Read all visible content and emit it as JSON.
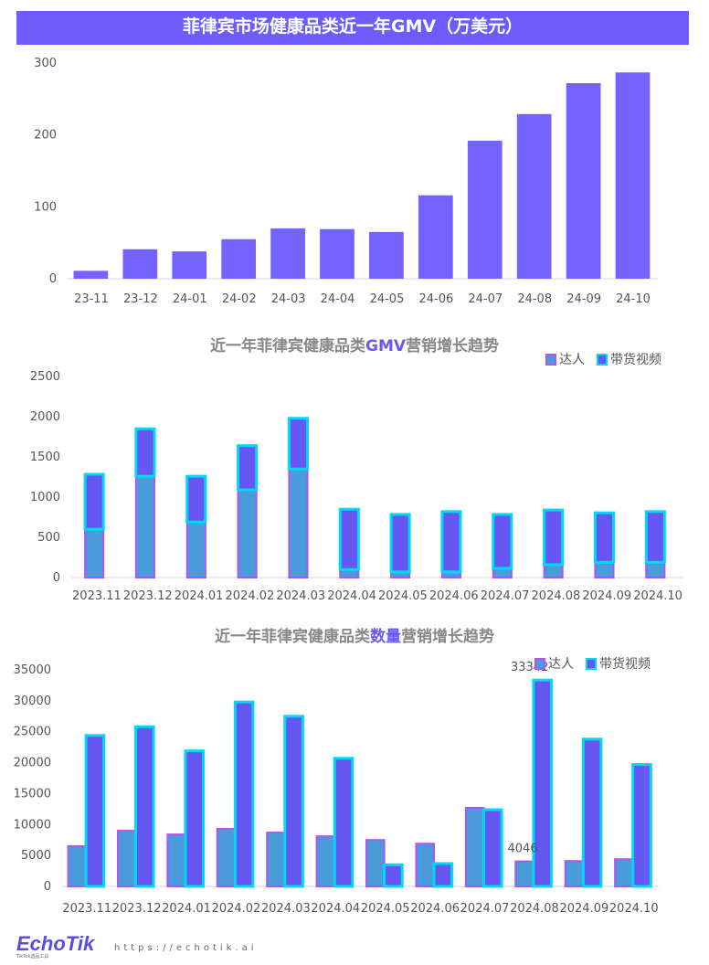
{
  "colors": {
    "banner": "#6e5bfb",
    "bar": "#7563ff",
    "darenFill": "#4a9bd9",
    "darenBorder": "#b055f0",
    "videoFill": "#6656f2",
    "videoBorder": "#00d9f5"
  },
  "chart_data": [
    {
      "type": "bar",
      "title": "菲律宾市场健康品类近一年GMV（万美元）",
      "categories": [
        "23-11",
        "23-12",
        "24-01",
        "24-02",
        "24-03",
        "24-04",
        "24-05",
        "24-06",
        "24-07",
        "24-08",
        "24-09",
        "24-10"
      ],
      "values": [
        11,
        41,
        38,
        55,
        70,
        69,
        65,
        116,
        192,
        229,
        272,
        287
      ],
      "yticks": [
        "0",
        "100",
        "200",
        "300"
      ],
      "ylim": [
        0,
        300
      ]
    },
    {
      "type": "bar",
      "stacked": true,
      "title_parts": [
        "近一年菲律宾健康品类",
        "GMV",
        "营销增长趋势"
      ],
      "categories": [
        "2023.11",
        "2023.12",
        "2024.01",
        "2024.02",
        "2024.03",
        "2024.04",
        "2024.05",
        "2024.06",
        "2024.07",
        "2024.08",
        "2024.09",
        "2024.10"
      ],
      "series": [
        {
          "name": "达人",
          "values": [
            600,
            1260,
            690,
            1090,
            1350,
            100,
            70,
            70,
            115,
            160,
            190,
            190
          ]
        },
        {
          "name": "带货视频",
          "values": [
            684,
            590,
            570,
            550,
            630,
            750,
            715,
            750,
            670,
            680,
            615,
            630
          ]
        }
      ],
      "yticks": [
        "0",
        "500",
        "1000",
        "1500",
        "2000",
        "2500"
      ],
      "ylim": [
        0,
        2500
      ],
      "legend": "top-right"
    },
    {
      "type": "bar",
      "title_parts": [
        "近一年菲律宾健康品类",
        "数量",
        "营销增长趋势"
      ],
      "categories": [
        "2023.11",
        "2023.12",
        "2024.01",
        "2024.02",
        "2024.03",
        "2024.04",
        "2024.05",
        "2024.06",
        "2024.07",
        "2024.08",
        "2024.09",
        "2024.10"
      ],
      "series": [
        {
          "name": "达人",
          "values": [
            6500,
            9000,
            8400,
            9300,
            8700,
            8100,
            7500,
            6900,
            12700,
            4046,
            4100,
            4400
          ]
        },
        {
          "name": "带货视频",
          "values": [
            24400,
            25800,
            21900,
            29800,
            27500,
            20700,
            3500,
            3700,
            12400,
            33342,
            23800,
            19700
          ]
        }
      ],
      "data_labels": [
        {
          "category": "2024.08",
          "series": "达人",
          "text": "4046"
        },
        {
          "category": "2024.08",
          "series": "带货视频",
          "text": "33342"
        }
      ],
      "yticks": [
        "0",
        "5000",
        "10000",
        "15000",
        "20000",
        "25000",
        "30000",
        "35000"
      ],
      "ylim": [
        0,
        35000
      ],
      "legend": "top-right"
    }
  ],
  "footer": {
    "logo": "EchoTik",
    "logo_sub": "TikTok选品工具",
    "url": "https://echotik.ai"
  }
}
